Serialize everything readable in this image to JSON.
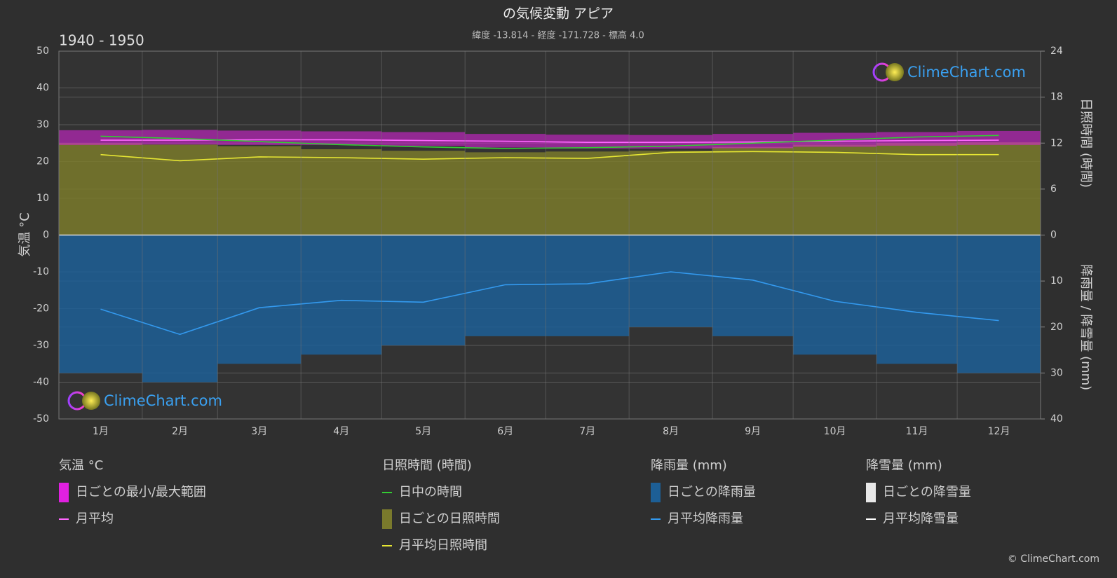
{
  "chart_data": {
    "type": "line",
    "title": "の気候変動 アピア",
    "subtitle": "緯度 -13.814 - 経度 -171.728 - 標高 4.0",
    "period": "1940 - 1950",
    "categories": [
      "1月",
      "2月",
      "3月",
      "4月",
      "5月",
      "6月",
      "7月",
      "8月",
      "9月",
      "10月",
      "11月",
      "12月"
    ],
    "ylabel": "気温 °C",
    "ylim": [
      -50,
      50
    ],
    "yticks": [
      -50,
      -40,
      -30,
      -20,
      -10,
      0,
      10,
      20,
      30,
      40,
      50
    ],
    "y2label": "日照時間 (時間)",
    "y2lim": [
      0,
      24
    ],
    "y2ticks": [
      0,
      6,
      12,
      18,
      24
    ],
    "y3label": "降雨量 / 降雪量 (mm)",
    "y3lim": [
      0,
      40
    ],
    "y3ticks": [
      10,
      20,
      30,
      40
    ],
    "grid": true,
    "groups": [
      {
        "title": "気温 °C",
        "series": [
          {
            "name": "日ごとの最小/最大範囲",
            "style": "band",
            "axis": "y",
            "color": "#e020e0",
            "low": [
              24.5,
              24.6,
              24.5,
              24.5,
              24.2,
              23.8,
              23.5,
              23.5,
              23.6,
              24.0,
              24.3,
              24.5
            ],
            "values": [
              28.5,
              28.6,
              28.4,
              28.2,
              28.0,
              27.5,
              27.3,
              27.2,
              27.5,
              27.8,
              28.0,
              28.3
            ]
          },
          {
            "name": "月平均",
            "style": "line",
            "axis": "y",
            "color": "#ff66ff",
            "values": [
              25.8,
              25.8,
              25.9,
              25.9,
              25.7,
              25.5,
              25.2,
              25.2,
              25.3,
              25.5,
              25.7,
              25.8
            ]
          }
        ]
      },
      {
        "title": "日照時間 (時間)",
        "series": [
          {
            "name": "日中の時間",
            "style": "line",
            "axis": "y2",
            "color": "#33cc33",
            "values": [
              12.9,
              12.6,
              12.2,
              11.8,
              11.5,
              11.3,
              11.4,
              11.6,
              12.0,
              12.4,
              12.8,
              13.0
            ]
          },
          {
            "name": "日ごとの日照時間",
            "style": "bar",
            "axis": "y2",
            "color": "#7a7a2c",
            "values": [
              12.0,
              11.8,
              11.6,
              11.2,
              11.0,
              10.8,
              10.9,
              11.0,
              11.5,
              11.8,
              12.0,
              12.1
            ]
          },
          {
            "name": "月平均日照時間",
            "style": "line",
            "axis": "y2",
            "color": "#e6e633",
            "values": [
              10.5,
              9.7,
              10.2,
              10.1,
              9.9,
              10.1,
              10.0,
              10.8,
              10.9,
              10.8,
              10.5,
              10.5
            ]
          }
        ]
      },
      {
        "title": "降雨量 (mm)",
        "series": [
          {
            "name": "日ごとの降雨量",
            "style": "bar",
            "axis": "y3",
            "color": "#1d5f96",
            "values": [
              30,
              32,
              28,
              26,
              24,
              22,
              22,
              20,
              22,
              26,
              28,
              30
            ]
          },
          {
            "name": "月平均降雨量",
            "style": "line",
            "axis": "y3",
            "color": "#3399ee",
            "values": [
              16.1,
              21.6,
              15.8,
              14.2,
              14.6,
              10.8,
              10.6,
              8.0,
              9.8,
              14.4,
              16.8,
              18.6
            ]
          }
        ]
      },
      {
        "title": "降雪量 (mm)",
        "series": [
          {
            "name": "日ごとの降雪量",
            "style": "bar",
            "color": "#e8e8e8"
          },
          {
            "name": "月平均降雪量",
            "style": "line",
            "color": "#ffffff"
          }
        ]
      }
    ],
    "watermarks": [
      "ClimeChart.com",
      "ClimeChart.com"
    ],
    "copyright": "© ClimeChart.com"
  }
}
